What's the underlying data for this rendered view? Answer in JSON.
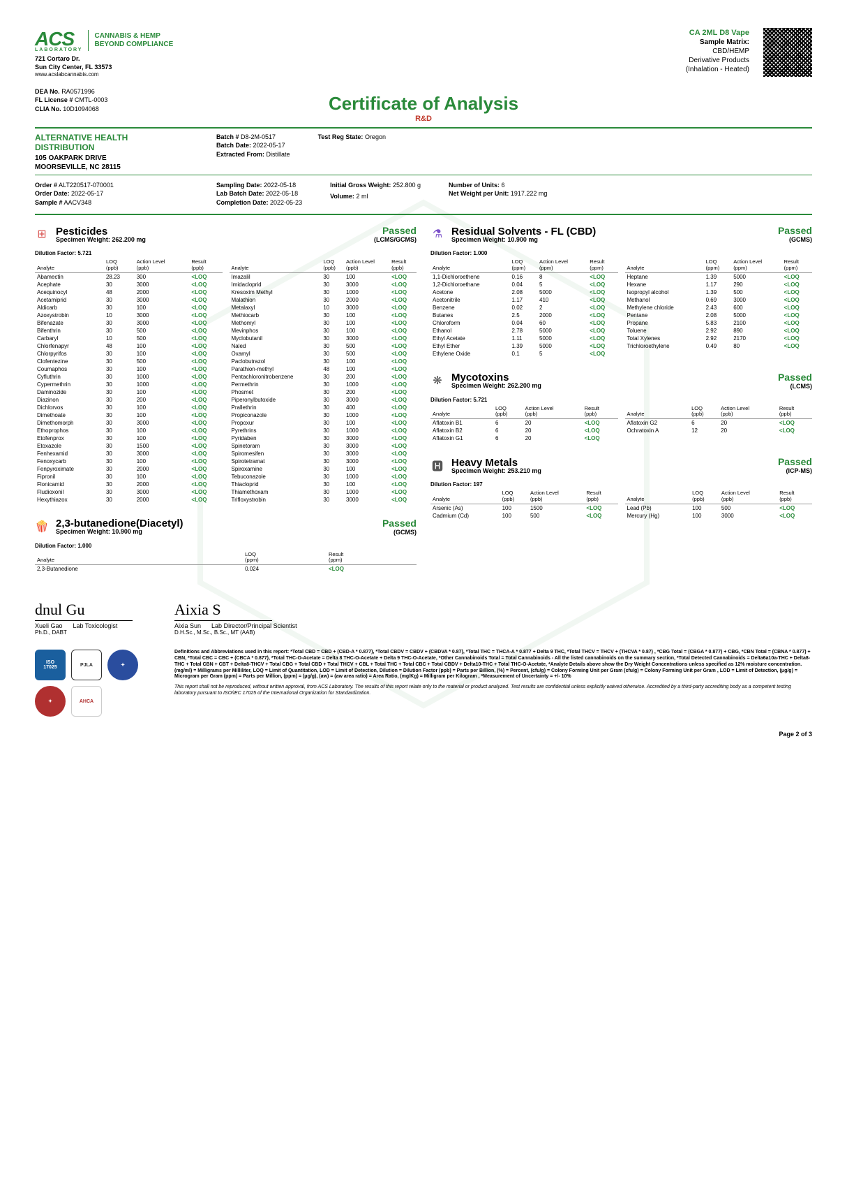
{
  "lab": {
    "logo": "ACS",
    "logo_sub": "LABORATORY",
    "tag1": "CANNABIS & HEMP",
    "tag2": "BEYOND COMPLIANCE",
    "addr1": "721 Cortaro Dr.",
    "addr2": "Sun City Center, FL 33573",
    "web": "www.acslabcannabis.com",
    "dea": "RA0571996",
    "fl": "CMTL-0003",
    "clia": "10D1094068"
  },
  "sample": {
    "name": "CA 2ML D8 Vape",
    "matrix_label": "Sample Matrix:",
    "matrix": "CBD/HEMP",
    "deriv": "Derivative Products",
    "inhal": "(Inhalation - Heated)"
  },
  "title": "Certificate of Analysis",
  "subtitle": "R&D",
  "client": {
    "name": "ALTERNATIVE HEALTH DISTRIBUTION",
    "addr1": "105 OAKPARK DRIVE",
    "addr2": "MOORSEVILLE, NC 28115"
  },
  "batch": {
    "batch_no": "D8-2M-0517",
    "batch_date": "2022-05-17",
    "extracted": "Distillate",
    "reg_state": "Oregon"
  },
  "order": {
    "order_no": "ALT220517-070001",
    "order_date": "2022-05-17",
    "sample_no": "AACV348",
    "sampling_date": "2022-05-18",
    "lab_batch_date": "2022-05-18",
    "completion_date": "2022-05-23",
    "gross_weight": "252.800 g",
    "volume": "2 ml",
    "units": "6",
    "net_weight": "1917.222 mg"
  },
  "pesticides": {
    "title": "Pesticides",
    "status": "Passed",
    "method": "(LCMS/GCMS)",
    "specimen": "Specimen Weight: 262.200 mg",
    "dilution": "Dilution Factor: 5.721",
    "headers": [
      "Analyte",
      "LOQ (ppb)",
      "Action Level (ppb)",
      "Result (ppb)"
    ],
    "left": [
      [
        "Abamectin",
        "28.23",
        "300",
        "<LOQ"
      ],
      [
        "Acephate",
        "30",
        "3000",
        "<LOQ"
      ],
      [
        "Acequinocyl",
        "48",
        "2000",
        "<LOQ"
      ],
      [
        "Acetamiprid",
        "30",
        "3000",
        "<LOQ"
      ],
      [
        "Aldicarb",
        "30",
        "100",
        "<LOQ"
      ],
      [
        "Azoxystrobin",
        "10",
        "3000",
        "<LOQ"
      ],
      [
        "Bifenazate",
        "30",
        "3000",
        "<LOQ"
      ],
      [
        "Bifenthrin",
        "30",
        "500",
        "<LOQ"
      ],
      [
        "Carbaryl",
        "10",
        "500",
        "<LOQ"
      ],
      [
        "Chlorfenapyr",
        "48",
        "100",
        "<LOQ"
      ],
      [
        "Chlorpyrifos",
        "30",
        "100",
        "<LOQ"
      ],
      [
        "Clofentezine",
        "30",
        "500",
        "<LOQ"
      ],
      [
        "Coumaphos",
        "30",
        "100",
        "<LOQ"
      ],
      [
        "Cyfluthrin",
        "30",
        "1000",
        "<LOQ"
      ],
      [
        "Cypermethrin",
        "30",
        "1000",
        "<LOQ"
      ],
      [
        "Daminozide",
        "30",
        "100",
        "<LOQ"
      ],
      [
        "Diazinon",
        "30",
        "200",
        "<LOQ"
      ],
      [
        "Dichlorvos",
        "30",
        "100",
        "<LOQ"
      ],
      [
        "Dimethoate",
        "30",
        "100",
        "<LOQ"
      ],
      [
        "Dimethomorph",
        "30",
        "3000",
        "<LOQ"
      ],
      [
        "Ethoprophos",
        "30",
        "100",
        "<LOQ"
      ],
      [
        "Etofenprox",
        "30",
        "100",
        "<LOQ"
      ],
      [
        "Etoxazole",
        "30",
        "1500",
        "<LOQ"
      ],
      [
        "Fenhexamid",
        "30",
        "3000",
        "<LOQ"
      ],
      [
        "Fenoxycarb",
        "30",
        "100",
        "<LOQ"
      ],
      [
        "Fenpyroximate",
        "30",
        "2000",
        "<LOQ"
      ],
      [
        "Fipronil",
        "30",
        "100",
        "<LOQ"
      ],
      [
        "Flonicamid",
        "30",
        "2000",
        "<LOQ"
      ],
      [
        "Fludioxonil",
        "30",
        "3000",
        "<LOQ"
      ],
      [
        "Hexythiazox",
        "30",
        "2000",
        "<LOQ"
      ]
    ],
    "right": [
      [
        "Imazalil",
        "30",
        "100",
        "<LOQ"
      ],
      [
        "Imidacloprid",
        "30",
        "3000",
        "<LOQ"
      ],
      [
        "Kresoxim Methyl",
        "30",
        "1000",
        "<LOQ"
      ],
      [
        "Malathion",
        "30",
        "2000",
        "<LOQ"
      ],
      [
        "Metalaxyl",
        "10",
        "3000",
        "<LOQ"
      ],
      [
        "Methiocarb",
        "30",
        "100",
        "<LOQ"
      ],
      [
        "Methomyl",
        "30",
        "100",
        "<LOQ"
      ],
      [
        "Mevinphos",
        "30",
        "100",
        "<LOQ"
      ],
      [
        "Myclobutanil",
        "30",
        "3000",
        "<LOQ"
      ],
      [
        "Naled",
        "30",
        "500",
        "<LOQ"
      ],
      [
        "Oxamyl",
        "30",
        "500",
        "<LOQ"
      ],
      [
        "Paclobutrazol",
        "30",
        "100",
        "<LOQ"
      ],
      [
        "Parathion-methyl",
        "48",
        "100",
        "<LOQ"
      ],
      [
        "Pentachloronitrobenzene",
        "30",
        "200",
        "<LOQ"
      ],
      [
        "Permethrin",
        "30",
        "1000",
        "<LOQ"
      ],
      [
        "Phosmet",
        "30",
        "200",
        "<LOQ"
      ],
      [
        "Piperonylbutoxide",
        "30",
        "3000",
        "<LOQ"
      ],
      [
        "Prallethrin",
        "30",
        "400",
        "<LOQ"
      ],
      [
        "Propiconazole",
        "30",
        "1000",
        "<LOQ"
      ],
      [
        "Propoxur",
        "30",
        "100",
        "<LOQ"
      ],
      [
        "Pyrethrins",
        "30",
        "1000",
        "<LOQ"
      ],
      [
        "Pyridaben",
        "30",
        "3000",
        "<LOQ"
      ],
      [
        "Spinetoram",
        "30",
        "3000",
        "<LOQ"
      ],
      [
        "Spiromesifen",
        "30",
        "3000",
        "<LOQ"
      ],
      [
        "Spirotetramat",
        "30",
        "3000",
        "<LOQ"
      ],
      [
        "Spiroxamine",
        "30",
        "100",
        "<LOQ"
      ],
      [
        "Tebuconazole",
        "30",
        "1000",
        "<LOQ"
      ],
      [
        "Thiacloprid",
        "30",
        "100",
        "<LOQ"
      ],
      [
        "Thiamethoxam",
        "30",
        "1000",
        "<LOQ"
      ],
      [
        "Trifloxystrobin",
        "30",
        "3000",
        "<LOQ"
      ]
    ]
  },
  "diacetyl": {
    "title": "2,3-butanedione(Diacetyl)",
    "status": "Passed",
    "method": "(GCMS)",
    "specimen": "Specimen Weight: 10.900 mg",
    "dilution": "Dilution Factor: 1.000",
    "headers": [
      "Analyte",
      "LOQ (ppm)",
      "Result (ppm)"
    ],
    "rows": [
      [
        "2,3-Butanedione",
        "0.024",
        "<LOQ"
      ]
    ]
  },
  "solvents": {
    "title": "Residual Solvents - FL (CBD)",
    "status": "Passed",
    "method": "(GCMS)",
    "specimen": "Specimen Weight: 10.900 mg",
    "dilution": "Dilution Factor: 1.000",
    "headers": [
      "Analyte",
      "LOQ (ppm)",
      "Action Level (ppm)",
      "Result (ppm)"
    ],
    "left": [
      [
        "1,1-Dichloroethene",
        "0.16",
        "8",
        "<LOQ"
      ],
      [
        "1,2-Dichloroethane",
        "0.04",
        "5",
        "<LOQ"
      ],
      [
        "Acetone",
        "2.08",
        "5000",
        "<LOQ"
      ],
      [
        "Acetonitrile",
        "1.17",
        "410",
        "<LOQ"
      ],
      [
        "Benzene",
        "0.02",
        "2",
        "<LOQ"
      ],
      [
        "Butanes",
        "2.5",
        "2000",
        "<LOQ"
      ],
      [
        "Chloroform",
        "0.04",
        "60",
        "<LOQ"
      ],
      [
        "Ethanol",
        "2.78",
        "5000",
        "<LOQ"
      ],
      [
        "Ethyl Acetate",
        "1.11",
        "5000",
        "<LOQ"
      ],
      [
        "Ethyl Ether",
        "1.39",
        "5000",
        "<LOQ"
      ],
      [
        "Ethylene Oxide",
        "0.1",
        "5",
        "<LOQ"
      ]
    ],
    "right": [
      [
        "Heptane",
        "1.39",
        "5000",
        "<LOQ"
      ],
      [
        "Hexane",
        "1.17",
        "290",
        "<LOQ"
      ],
      [
        "Isopropyl alcohol",
        "1.39",
        "500",
        "<LOQ"
      ],
      [
        "Methanol",
        "0.69",
        "3000",
        "<LOQ"
      ],
      [
        "Methylene chloride",
        "2.43",
        "600",
        "<LOQ"
      ],
      [
        "Pentane",
        "2.08",
        "5000",
        "<LOQ"
      ],
      [
        "Propane",
        "5.83",
        "2100",
        "<LOQ"
      ],
      [
        "Toluene",
        "2.92",
        "890",
        "<LOQ"
      ],
      [
        "Total Xylenes",
        "2.92",
        "2170",
        "<LOQ"
      ],
      [
        "Trichloroethylene",
        "0.49",
        "80",
        "<LOQ"
      ]
    ]
  },
  "myco": {
    "title": "Mycotoxins",
    "status": "Passed",
    "method": "(LCMS)",
    "specimen": "Specimen Weight: 262.200 mg",
    "dilution": "Dilution Factor: 5.721",
    "headers": [
      "Analyte",
      "LOQ (ppb)",
      "Action Level (ppb)",
      "Result (ppb)"
    ],
    "left": [
      [
        "Aflatoxin B1",
        "6",
        "20",
        "<LOQ"
      ],
      [
        "Aflatoxin B2",
        "6",
        "20",
        "<LOQ"
      ],
      [
        "Aflatoxin G1",
        "6",
        "20",
        "<LOQ"
      ]
    ],
    "right": [
      [
        "Aflatoxin G2",
        "6",
        "20",
        "<LOQ"
      ],
      [
        "Ochratoxin A",
        "12",
        "20",
        "<LOQ"
      ]
    ]
  },
  "metals": {
    "title": "Heavy Metals",
    "status": "Passed",
    "method": "(ICP-MS)",
    "specimen": "Specimen Weight: 253.210 mg",
    "dilution": "Dilution Factor: 197",
    "headers": [
      "Analyte",
      "LOQ (ppb)",
      "Action Level (ppb)",
      "Result (ppb)"
    ],
    "left": [
      [
        "Arsenic (As)",
        "100",
        "1500",
        "<LOQ"
      ],
      [
        "Cadmium (Cd)",
        "100",
        "500",
        "<LOQ"
      ]
    ],
    "right": [
      [
        "Lead (Pb)",
        "100",
        "500",
        "<LOQ"
      ],
      [
        "Mercury (Hg)",
        "100",
        "3000",
        "<LOQ"
      ]
    ]
  },
  "sigs": {
    "s1_sig": "dnul   Gu",
    "s1_name": "Xueli Gao",
    "s1_role": "Lab Toxicologist",
    "s1_cred": "Ph.D., DABT",
    "s2_sig": "Aixia S",
    "s2_name": "Aixia Sun",
    "s2_role": "Lab Director/Principal Scientist",
    "s2_cred": "D.H.Sc., M.Sc., B.Sc., MT (AAB)"
  },
  "defs": {
    "p1": "Definitions and Abbreviations used in this report: *Total CBD = CBD + (CBD-A * 0.877), *Total CBDV = CBDV + (CBDVA * 0.87), *Total THC = THCA-A * 0.877 + Delta 9 THC, *Total THCV = THCV + (THCVA * 0.87) , *CBG Total = (CBGA * 0.877) + CBG, *CBN Total = (CBNA * 0.877) + CBN, *Total CBC = CBC + (CBCA * 0.877), *Total THC-O-Acetate = Delta 8 THC-O-Acetate + Delta 9 THC-O-Acetate, *Other Cannabinoids Total = Total Cannabinoids - All the listed cannabinoids on the summary section, *Total Detected Cannabinoids = Delta6a10a-THC + Delta8-THC + Total CBN + CBT + Delta8-THCV + Total CBG + Total CBD + Total THCV + CBL + Total THC + Total CBC + Total CBDV + Delta10-THC + Total THC-O-Acetate, *Analyte Details above show the Dry Weight Concentrations unless specified as 12% moisture concentration. (mg/ml) = Milligrams per Milliliter, LOQ = Limit of Quantitation, LOD = Limit of Detection, Dilution = Dilution Factor (ppb) = Parts per Billion, (%) = Percent, (cfu/g) = Colony Forming Unit per Gram (cfu/g) = Colony Forming Unit per Gram , LOD = Limit of Detection, (μg/g) = Microgram per Gram (ppm) = Parts per Million, (ppm) = (μg/g), (aw) = (aw area ratio) = Area Ratio, (mg/Kg) = Milligram per Kilogram , *Measurement of Uncertainty = +/- 10%",
    "p2": "This report shall not be reproduced, without written approval, from ACS Laboratory. The results of this report relate only to the material or product analyzed. Test results are confidential unless explicitly waived otherwise. Accredited by a third-party accrediting body as a competent testing laboratory pursuant to ISO/IEC 17025 of the International Organization for Standardization."
  },
  "page": "Page 2 of 3",
  "colors": {
    "green": "#2a8a3a",
    "red": "#c0392b"
  }
}
